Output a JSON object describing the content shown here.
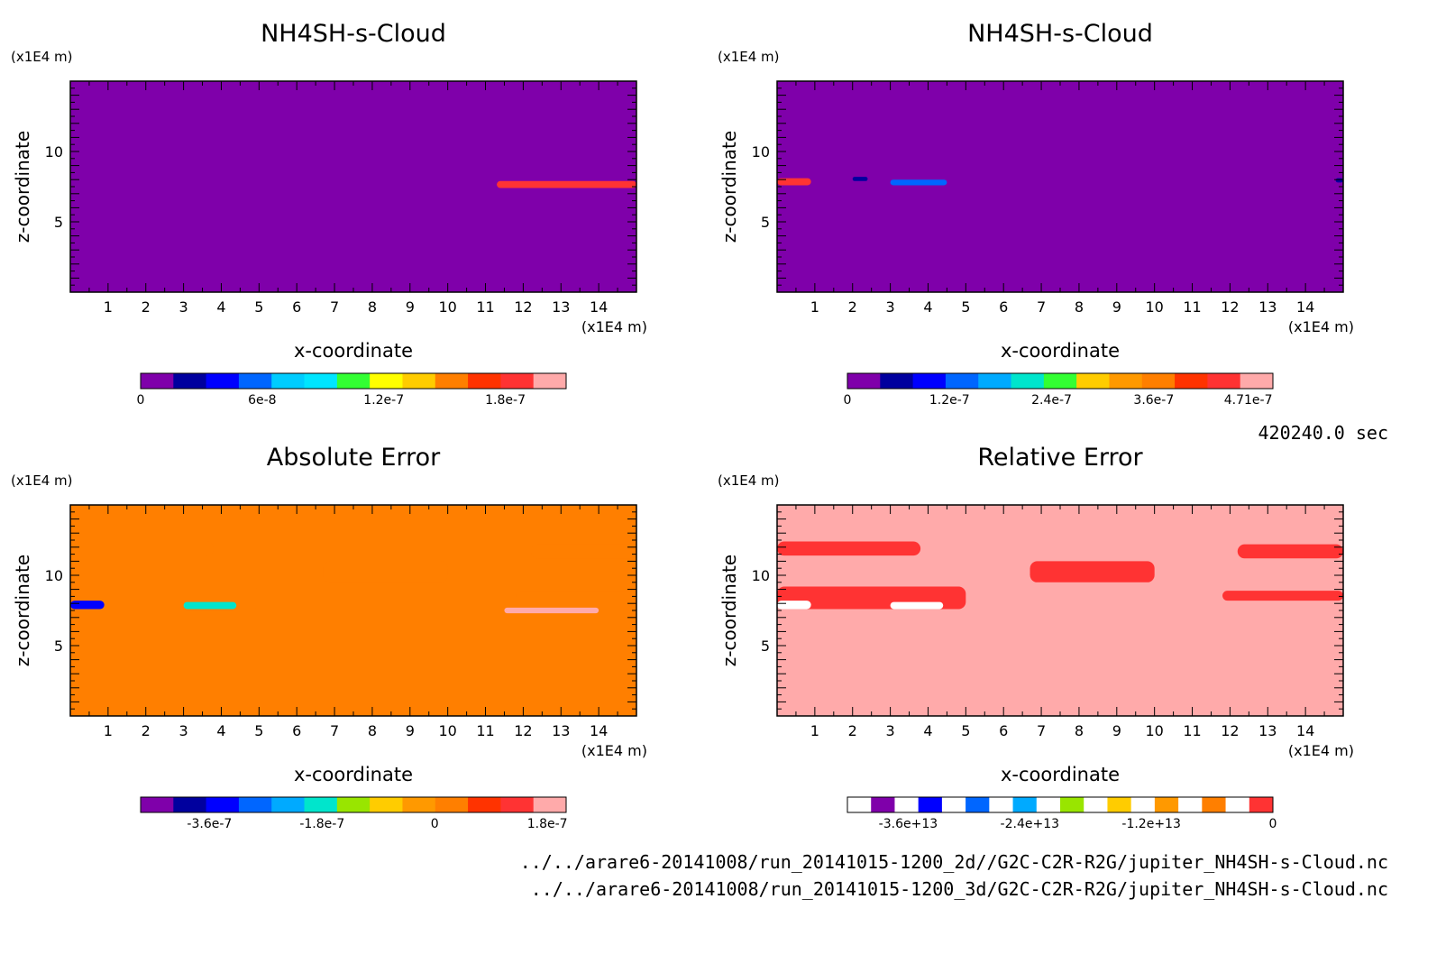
{
  "time_label": "420240.0 sec",
  "files": [
    "../../arare6-20141008/run_20141015-1200_2d//G2C-C2R-R2G/jupiter_NH4SH-s-Cloud.nc",
    "../../arare6-20141008/run_20141015-1200_3d/G2C-C2R-R2G/jupiter_NH4SH-s-Cloud.nc"
  ],
  "chart_data": [
    {
      "type": "heatmap",
      "title": "NH4SH-s-Cloud",
      "xlabel": "x-coordinate",
      "ylabel": "z-coordinate",
      "x_unit": "(x1E4 m)",
      "z_unit": "(x1E4 m)",
      "xlim": [
        0,
        15
      ],
      "zlim": [
        0,
        15
      ],
      "x_ticks": [
        "1",
        "2",
        "3",
        "4",
        "5",
        "6",
        "7",
        "8",
        "9",
        "10",
        "11",
        "12",
        "13",
        "14"
      ],
      "z_ticks": [
        "5",
        "10"
      ],
      "background_color": "#7f00aa",
      "features": [
        {
          "x": [
            11.3,
            15.0
          ],
          "z": [
            7.4,
            7.9
          ],
          "value": 1.8e-07
        }
      ],
      "colorbar": {
        "colors": [
          "#7f00aa",
          "#00009e",
          "#0000ff",
          "#0066ff",
          "#00ccff",
          "#00e5ff",
          "#33ff33",
          "#ffff00",
          "#ffcc00",
          "#ff7f00",
          "#ff3300",
          "#ff3333",
          "#ffaaaa"
        ],
        "labels": [
          "0",
          "6e-8",
          "1.2e-7",
          "1.8e-7"
        ],
        "label_values": [
          0,
          6e-08,
          1.2e-07,
          1.8e-07
        ],
        "range": [
          0,
          2.1e-07
        ]
      }
    },
    {
      "type": "heatmap",
      "title": "NH4SH-s-Cloud",
      "xlabel": "x-coordinate",
      "ylabel": "z-coordinate",
      "x_unit": "(x1E4 m)",
      "z_unit": "(x1E4 m)",
      "xlim": [
        0,
        15
      ],
      "zlim": [
        0,
        15
      ],
      "x_ticks": [
        "1",
        "2",
        "3",
        "4",
        "5",
        "6",
        "7",
        "8",
        "9",
        "10",
        "11",
        "12",
        "13",
        "14"
      ],
      "z_ticks": [
        "5",
        "10"
      ],
      "background_color": "#7f00aa",
      "features": [
        {
          "x": [
            0.0,
            0.9
          ],
          "z": [
            7.6,
            8.1
          ],
          "value": 4.5e-07
        },
        {
          "x": [
            2.0,
            2.4
          ],
          "z": [
            7.9,
            8.2
          ],
          "value": 6e-08
        },
        {
          "x": [
            3.0,
            4.5
          ],
          "z": [
            7.6,
            8.0
          ],
          "value": 1.2e-07
        },
        {
          "x": [
            14.8,
            15.0
          ],
          "z": [
            7.8,
            8.1
          ],
          "value": 6e-08
        }
      ],
      "colorbar": {
        "colors": [
          "#7f00aa",
          "#00009e",
          "#0000ff",
          "#0066ff",
          "#00aaff",
          "#00e5cc",
          "#33ff33",
          "#ffcc00",
          "#ff9900",
          "#ff7f00",
          "#ff3300",
          "#ff3333",
          "#ffaaaa"
        ],
        "labels": [
          "0",
          "1.2e-7",
          "2.4e-7",
          "3.6e-7",
          "4.71e-7"
        ],
        "label_values": [
          0,
          1.2e-07,
          2.4e-07,
          3.6e-07,
          4.71e-07
        ],
        "range": [
          0,
          5e-07
        ]
      }
    },
    {
      "type": "heatmap",
      "title": "Absolute Error",
      "xlabel": "x-coordinate",
      "ylabel": "z-coordinate",
      "x_unit": "(x1E4 m)",
      "z_unit": "(x1E4 m)",
      "xlim": [
        0,
        15
      ],
      "zlim": [
        0,
        15
      ],
      "x_ticks": [
        "1",
        "2",
        "3",
        "4",
        "5",
        "6",
        "7",
        "8",
        "9",
        "10",
        "11",
        "12",
        "13",
        "14"
      ],
      "z_ticks": [
        "5",
        "10"
      ],
      "background_color": "#ff7f00",
      "features": [
        {
          "x": [
            0.0,
            5.0
          ],
          "z": [
            7.6,
            9.2
          ],
          "value": 1.5e-08
        },
        {
          "x": [
            0.0,
            3.8
          ],
          "z": [
            11.4,
            12.4
          ],
          "value": 1.5e-08
        },
        {
          "x": [
            6.7,
            10.0
          ],
          "z": [
            9.5,
            11.0
          ],
          "value": 1.5e-08
        },
        {
          "x": [
            12.2,
            15.0
          ],
          "z": [
            11.2,
            12.2
          ],
          "value": 1.5e-08
        },
        {
          "x": [
            11.8,
            15.0
          ],
          "z": [
            8.2,
            8.9
          ],
          "value": 1.5e-08
        },
        {
          "x": [
            0.0,
            0.9
          ],
          "z": [
            7.6,
            8.2
          ],
          "value": -3.6e-07
        },
        {
          "x": [
            3.0,
            4.4
          ],
          "z": [
            7.6,
            8.1
          ],
          "value": -1.8e-07
        },
        {
          "x": [
            11.5,
            14.0
          ],
          "z": [
            7.3,
            7.7
          ],
          "value": 1.6e-07
        }
      ],
      "colorbar": {
        "colors": [
          "#7f00aa",
          "#00009e",
          "#0000ff",
          "#0066ff",
          "#00aaff",
          "#00e5cc",
          "#99e500",
          "#ffcc00",
          "#ff9900",
          "#ff7f00",
          "#ff3300",
          "#ff3333",
          "#ffaaaa"
        ],
        "labels": [
          "-3.6e-7",
          "-1.8e-7",
          "0",
          "1.8e-7"
        ],
        "label_values": [
          -3.6e-07,
          -1.8e-07,
          0,
          1.8e-07
        ],
        "range": [
          -4.7e-07,
          2.1e-07
        ]
      }
    },
    {
      "type": "heatmap",
      "title": "Relative Error",
      "xlabel": "x-coordinate",
      "ylabel": "z-coordinate",
      "x_unit": "(x1E4 m)",
      "z_unit": "(x1E4 m)",
      "xlim": [
        0,
        15
      ],
      "zlim": [
        0,
        15
      ],
      "x_ticks": [
        "1",
        "2",
        "3",
        "4",
        "5",
        "6",
        "7",
        "8",
        "9",
        "10",
        "11",
        "12",
        "13",
        "14"
      ],
      "z_ticks": [
        "5",
        "10"
      ],
      "background_color": "#ffaaaa",
      "features": [
        {
          "x": [
            0.0,
            5.0
          ],
          "z": [
            7.6,
            9.2
          ],
          "value": -1000000000000.0
        },
        {
          "x": [
            0.0,
            3.8
          ],
          "z": [
            11.4,
            12.4
          ],
          "value": -1000000000000.0
        },
        {
          "x": [
            6.7,
            10.0
          ],
          "z": [
            9.5,
            11.0
          ],
          "value": -1000000000000.0
        },
        {
          "x": [
            12.2,
            15.0
          ],
          "z": [
            11.2,
            12.2
          ],
          "value": -1000000000000.0
        },
        {
          "x": [
            11.8,
            15.0
          ],
          "z": [
            8.2,
            8.9
          ],
          "value": -1000000000000.0
        },
        {
          "x": [
            0.0,
            0.9
          ],
          "z": [
            7.6,
            8.2
          ],
          "value": -36000000000000.0
        },
        {
          "x": [
            3.0,
            4.4
          ],
          "z": [
            7.6,
            8.1
          ],
          "value": -12000000000000.0
        }
      ],
      "colorbar": {
        "colors": [
          "#ffffff",
          "#7f00aa",
          "#ffffff",
          "#0000ff",
          "#ffffff",
          "#0066ff",
          "#ffffff",
          "#00aaff",
          "#ffffff",
          "#99e500",
          "#ffffff",
          "#ffcc00",
          "#ffffff",
          "#ff9900",
          "#ffffff",
          "#ff7f00",
          "#ffffff",
          "#ff3333"
        ],
        "labels": [
          "-3.6e+13",
          "-2.4e+13",
          "-1.2e+13",
          "0"
        ],
        "label_values": [
          -36000000000000.0,
          -24000000000000.0,
          -12000000000000.0,
          0
        ],
        "range": [
          -42000000000000.0,
          0
        ]
      }
    }
  ]
}
